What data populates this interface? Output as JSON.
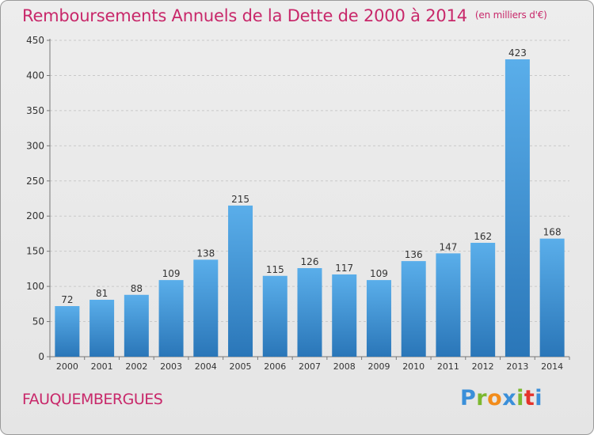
{
  "title": "Remboursements Annuels de la Dette de 2000 à 2014",
  "unit_note": "(en milliers d'€)",
  "commune": "FAUQUEMBERGUES",
  "logo": {
    "p": "P",
    "r": "r",
    "o": "o",
    "x": "x",
    "i1": "i",
    "t": "t",
    "i2": "i"
  },
  "colors": {
    "accent": "#c8286a",
    "bar_top": "#5aaeea",
    "bar_bottom": "#2a76b8"
  },
  "chart_data": {
    "type": "bar",
    "categories": [
      "2000",
      "2001",
      "2002",
      "2003",
      "2004",
      "2005",
      "2006",
      "2007",
      "2008",
      "2009",
      "2010",
      "2011",
      "2012",
      "2013",
      "2014"
    ],
    "values": [
      72,
      81,
      88,
      109,
      138,
      215,
      115,
      126,
      117,
      109,
      136,
      147,
      162,
      423,
      168
    ],
    "yticks": [
      0,
      50,
      100,
      150,
      200,
      250,
      300,
      350,
      400,
      450
    ],
    "ylim": [
      0,
      450
    ],
    "grid": true
  }
}
